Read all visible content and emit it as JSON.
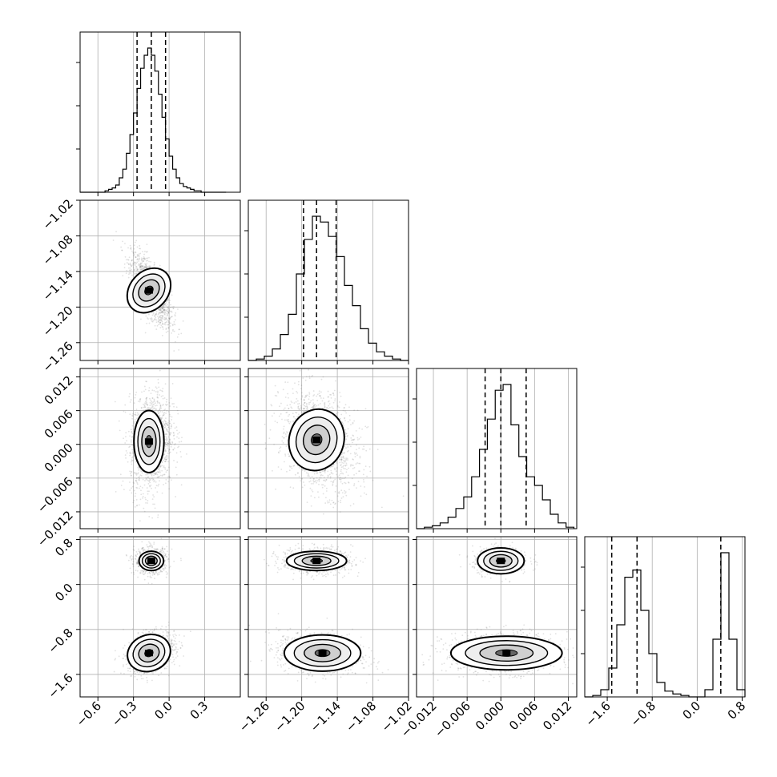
{
  "chart_data": {
    "type": "corner",
    "title": "",
    "parameters": [
      {
        "index": 0,
        "xlim": [
          -0.75,
          0.6
        ],
        "ticks": [
          -0.6,
          -0.3,
          0.0,
          0.3
        ],
        "tick_labels": [
          "−0.6",
          "−0.3",
          "0.0",
          "0.3"
        ],
        "quantiles": [
          -0.27,
          -0.15,
          -0.03
        ],
        "mode": -0.15,
        "sd": 0.075
      },
      {
        "index": 1,
        "xlim": [
          -1.29,
          -1.02
        ],
        "ticks": [
          -1.26,
          -1.2,
          -1.14,
          -1.08,
          -1.02
        ],
        "tick_labels": [
          "−1.26",
          "−1.20",
          "−1.14",
          "−1.08",
          "−1.02"
        ],
        "quantiles": [
          -1.197,
          -1.175,
          -1.142
        ],
        "mode": -1.178,
        "sd": 0.028
      },
      {
        "index": 2,
        "xlim": [
          -0.015,
          0.0135
        ],
        "ticks": [
          -0.012,
          -0.006,
          0.0,
          0.006,
          0.012
        ],
        "tick_labels": [
          "−0.012",
          "−0.006",
          "0.000",
          "0.006",
          "0.012"
        ],
        "quantiles": [
          -0.0028,
          0.0,
          0.0045
        ],
        "mode": 0.0,
        "sd": 0.0033
      },
      {
        "index": 3,
        "xlim": [
          -2.0,
          0.85
        ],
        "ticks": [
          -1.6,
          -0.8,
          0.0,
          0.8
        ],
        "tick_labels": [
          "−1.6",
          "−0.8",
          "0.0",
          "0.8"
        ],
        "quantiles": [
          -1.52,
          -1.07,
          0.42
        ],
        "modes": [
          -1.25,
          0.42
        ],
        "sd": 0.18
      }
    ],
    "histograms": [
      {
        "param": 0,
        "x": [
          -0.75,
          -0.72,
          -0.69,
          -0.66,
          -0.63,
          -0.6,
          -0.57,
          -0.54,
          -0.51,
          -0.48,
          -0.45,
          -0.42,
          -0.39,
          -0.36,
          -0.33,
          -0.3,
          -0.27,
          -0.24,
          -0.21,
          -0.18,
          -0.15,
          -0.12,
          -0.09,
          -0.06,
          -0.03,
          0.0,
          0.03,
          0.06,
          0.09,
          0.12,
          0.15,
          0.18,
          0.21,
          0.24,
          0.27,
          0.3,
          0.33,
          0.36,
          0.39,
          0.42,
          0.45
        ],
        "values": [
          0,
          0,
          0,
          0,
          0,
          0,
          0,
          0.01,
          0.02,
          0.03,
          0.05,
          0.1,
          0.16,
          0.27,
          0.4,
          0.55,
          0.72,
          0.86,
          0.95,
          1.0,
          0.95,
          0.84,
          0.68,
          0.52,
          0.37,
          0.25,
          0.16,
          0.1,
          0.06,
          0.04,
          0.03,
          0.02,
          0.01,
          0.01,
          0,
          0,
          0,
          0,
          0,
          0,
          0
        ]
      },
      {
        "param": 1,
        "x": [
          -1.29,
          -1.2765,
          -1.263,
          -1.2495,
          -1.236,
          -1.2225,
          -1.209,
          -1.1955,
          -1.182,
          -1.1685,
          -1.155,
          -1.1415,
          -1.128,
          -1.1145,
          -1.101,
          -1.0875,
          -1.074,
          -1.0605,
          -1.047,
          -1.0335
        ],
        "values": [
          0,
          0.01,
          0.03,
          0.08,
          0.18,
          0.32,
          0.6,
          0.84,
          1.0,
          0.96,
          0.86,
          0.72,
          0.52,
          0.38,
          0.22,
          0.12,
          0.06,
          0.03,
          0.01,
          0
        ]
      },
      {
        "param": 2,
        "x": [
          -0.015,
          -0.0136,
          -0.0122,
          -0.0108,
          -0.0094,
          -0.008,
          -0.0066,
          -0.0052,
          -0.0038,
          -0.0024,
          -0.001,
          0.0004,
          0.0018,
          0.0032,
          0.0046,
          0.006,
          0.0074,
          0.0088,
          0.0102,
          0.0116
        ],
        "values": [
          0,
          0.01,
          0.02,
          0.04,
          0.08,
          0.14,
          0.22,
          0.36,
          0.55,
          0.76,
          0.96,
          1.0,
          0.72,
          0.5,
          0.36,
          0.3,
          0.2,
          0.1,
          0.04,
          0.01
        ]
      },
      {
        "param": 3,
        "x": [
          -2.0,
          -1.8575,
          -1.715,
          -1.5725,
          -1.43,
          -1.2875,
          -1.145,
          -1.0025,
          -0.86,
          -0.7175,
          -0.575,
          -0.4325,
          -0.29,
          -0.1475,
          -0.005,
          0.1375,
          0.28,
          0.4225,
          0.565,
          0.7075
        ],
        "values": [
          0,
          0.01,
          0.05,
          0.2,
          0.5,
          0.83,
          0.88,
          0.6,
          0.3,
          0.1,
          0.04,
          0.02,
          0.01,
          0,
          0,
          0.05,
          0.4,
          1.0,
          0.4,
          0.05
        ]
      }
    ],
    "density_peaks": [
      {
        "pair": [
          1,
          0
        ],
        "mode": [
          -0.17,
          -1.175
        ],
        "sd": [
          0.075,
          0.028
        ],
        "corr": -0.75
      },
      {
        "pair": [
          2,
          0
        ],
        "mode": [
          -0.17,
          0.0
        ],
        "sd": [
          0.07,
          0.0033
        ],
        "corr": 0.15
      },
      {
        "pair": [
          2,
          1
        ],
        "mode": [
          -1.175,
          0.0
        ],
        "sd": [
          0.028,
          0.0033
        ],
        "corr": -0.3
      },
      {
        "pair": [
          3,
          0
        ],
        "modes": [
          [
            -0.15,
            0.42
          ],
          [
            -0.18,
            -1.22
          ]
        ]
      },
      {
        "pair": [
          3,
          1
        ],
        "modes": [
          [
            -1.175,
            0.42
          ],
          [
            -1.17,
            -1.22
          ]
        ]
      },
      {
        "pair": [
          3,
          2
        ],
        "modes": [
          [
            0.0,
            0.42
          ],
          [
            0.001,
            -1.22
          ]
        ]
      }
    ],
    "grid": true,
    "legend": null,
    "colors": {
      "points": "#777777",
      "lines": "#000000",
      "grid": "#b0b0b0"
    }
  }
}
